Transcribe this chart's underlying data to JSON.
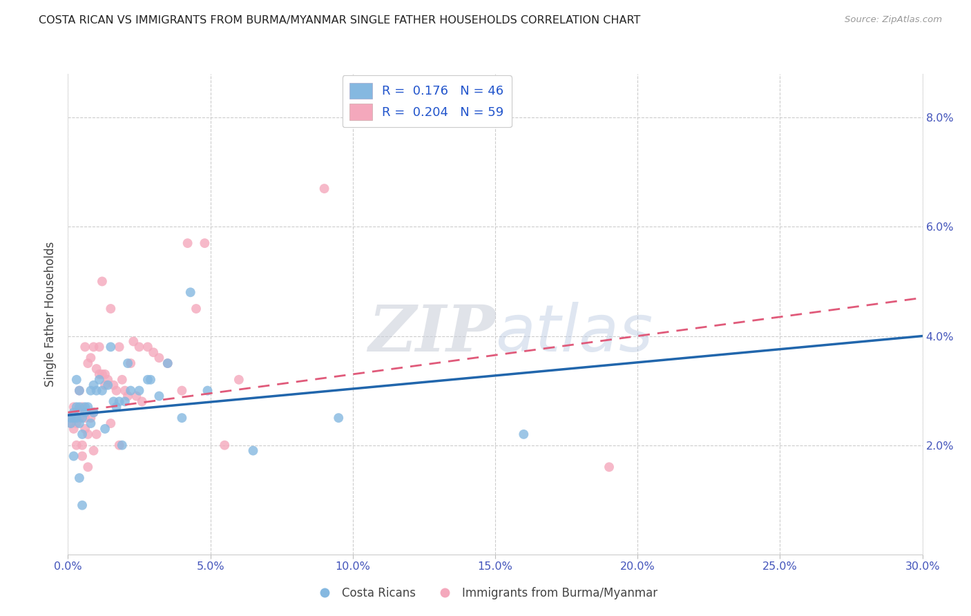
{
  "title": "COSTA RICAN VS IMMIGRANTS FROM BURMA/MYANMAR SINGLE FATHER HOUSEHOLDS CORRELATION CHART",
  "source": "Source: ZipAtlas.com",
  "ylabel": "Single Father Households",
  "x_tick_labels": [
    "0.0%",
    "5.0%",
    "10.0%",
    "15.0%",
    "20.0%",
    "25.0%",
    "30.0%"
  ],
  "x_tick_values": [
    0,
    5,
    10,
    15,
    20,
    25,
    30
  ],
  "y_tick_labels": [
    "2.0%",
    "4.0%",
    "6.0%",
    "8.0%"
  ],
  "y_tick_values": [
    2,
    4,
    6,
    8
  ],
  "xlim": [
    0,
    30
  ],
  "ylim": [
    0,
    8.8
  ],
  "legend_label1": "R =  0.176   N = 46",
  "legend_label2": "R =  0.204   N = 59",
  "legend_label_bottom1": "Costa Ricans",
  "legend_label_bottom2": "Immigrants from Burma/Myanmar",
  "color_blue": "#85b8e0",
  "color_pink": "#f4a8bc",
  "line_color_blue": "#2166ac",
  "line_color_pink": "#e05a7a",
  "watermark_zip": "ZIP",
  "watermark_atlas": "atlas",
  "blue_line_x0": 0,
  "blue_line_y0": 2.55,
  "blue_line_x1": 30,
  "blue_line_y1": 4.0,
  "pink_line_x0": 0,
  "pink_line_y0": 2.6,
  "pink_line_x1": 30,
  "pink_line_y1": 4.7,
  "blue_x": [
    0.1,
    0.1,
    0.2,
    0.2,
    0.3,
    0.3,
    0.3,
    0.4,
    0.4,
    0.4,
    0.5,
    0.5,
    0.6,
    0.6,
    0.7,
    0.8,
    0.8,
    0.9,
    0.9,
    1.0,
    1.1,
    1.2,
    1.3,
    1.4,
    1.5,
    1.6,
    1.7,
    1.8,
    1.9,
    2.0,
    2.1,
    2.2,
    2.5,
    2.8,
    2.9,
    3.2,
    3.5,
    4.0,
    4.3,
    4.9,
    6.5,
    9.5,
    16.0,
    0.2,
    0.4,
    0.5
  ],
  "blue_y": [
    2.5,
    2.4,
    2.6,
    2.5,
    2.5,
    2.7,
    3.2,
    2.4,
    2.7,
    3.0,
    2.5,
    2.2,
    2.6,
    2.7,
    2.7,
    2.4,
    3.0,
    2.6,
    3.1,
    3.0,
    3.2,
    3.0,
    2.3,
    3.1,
    3.8,
    2.8,
    2.7,
    2.8,
    2.0,
    2.8,
    3.5,
    3.0,
    3.0,
    3.2,
    3.2,
    2.9,
    3.5,
    2.5,
    4.8,
    3.0,
    1.9,
    2.5,
    2.2,
    1.8,
    1.4,
    0.9
  ],
  "pink_x": [
    0.1,
    0.1,
    0.2,
    0.2,
    0.3,
    0.3,
    0.4,
    0.4,
    0.4,
    0.5,
    0.5,
    0.5,
    0.6,
    0.6,
    0.7,
    0.7,
    0.8,
    0.8,
    0.9,
    0.9,
    1.0,
    1.1,
    1.1,
    1.2,
    1.2,
    1.3,
    1.4,
    1.5,
    1.5,
    1.6,
    1.7,
    1.8,
    1.8,
    1.9,
    2.0,
    2.1,
    2.2,
    2.3,
    2.4,
    2.5,
    2.6,
    2.8,
    3.0,
    3.2,
    3.5,
    4.0,
    4.2,
    4.5,
    4.8,
    5.5,
    6.0,
    9.0,
    19.0,
    0.3,
    0.7,
    1.3,
    0.9,
    0.6,
    1.0
  ],
  "pink_y": [
    2.5,
    2.4,
    2.3,
    2.7,
    2.4,
    2.5,
    2.5,
    2.6,
    3.0,
    2.0,
    2.7,
    1.8,
    2.3,
    2.5,
    2.2,
    3.5,
    2.5,
    3.6,
    2.6,
    3.8,
    3.4,
    3.3,
    3.8,
    3.3,
    5.0,
    3.3,
    3.2,
    2.4,
    4.5,
    3.1,
    3.0,
    3.8,
    2.0,
    3.2,
    3.0,
    2.9,
    3.5,
    3.9,
    2.9,
    3.8,
    2.8,
    3.8,
    3.7,
    3.6,
    3.5,
    3.0,
    5.7,
    4.5,
    5.7,
    2.0,
    3.2,
    6.7,
    1.6,
    2.0,
    1.6,
    3.1,
    1.9,
    3.8,
    2.2
  ]
}
